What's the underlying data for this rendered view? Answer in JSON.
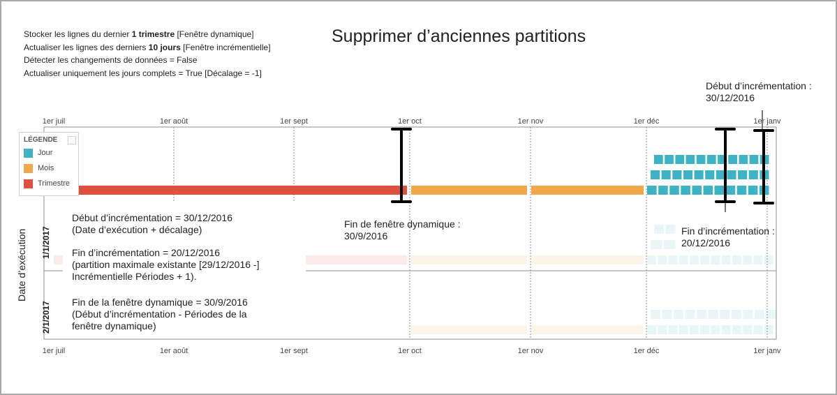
{
  "title": "Supprimer d’anciennes partitions",
  "settings": [
    {
      "before": "Stocker les lignes du dernier ",
      "bold": "1 trimestre",
      "after": " [Fenêtre dynamique]"
    },
    {
      "before": "Actualiser les lignes des derniers ",
      "bold": "10 jours",
      "after": " [Fenêtre incrémentielle]"
    },
    {
      "before": "Détecter les changements de données = False",
      "bold": "",
      "after": ""
    },
    {
      "before": "Actualiser uniquement les jours complets = True [Décalage = -1]",
      "bold": "",
      "after": ""
    }
  ],
  "months": [
    "1er juil",
    "1er août",
    "1er sept",
    "1er oct",
    "1er nov",
    "1er déc",
    "1er janv"
  ],
  "legend": {
    "title": "LÉGENDE",
    "items": [
      {
        "label": "Jour",
        "color": "#3fb3c4"
      },
      {
        "label": "Mois",
        "color": "#f0a84a"
      },
      {
        "label": "Trimestre",
        "color": "#e05040"
      }
    ]
  },
  "y_axis_label": "Date d’exécution",
  "rows": [
    "1/1/2017",
    "2/1/2017"
  ],
  "callouts": {
    "start_top": [
      "Début d’incrémentation :",
      "30/12/2016"
    ],
    "end_right": [
      "Fin d’incrémentation :",
      "20/12/2016"
    ],
    "rolling_end": [
      "Fin de fenêtre dynamique :",
      "30/9/2016"
    ],
    "explanations": [
      [
        "Début d’incrémentation = 30/12/2016",
        "(Date d’exécution + décalage)"
      ],
      [
        "Fin d’incrémentation = 20/12/2016",
        "(partition maximale existante [29/12/2016 -]",
        "Incrémentielle  Périodes + 1)."
      ],
      [
        "Fin de la fenêtre dynamique = 30/9/2016",
        "(Début d’incrémentation - Périodes de la",
        "fenêtre dynamique)"
      ]
    ]
  },
  "colors": {
    "day": "#3fb3c4",
    "month": "#f0a84a",
    "quarter": "#e05040",
    "marker": "#000000"
  }
}
